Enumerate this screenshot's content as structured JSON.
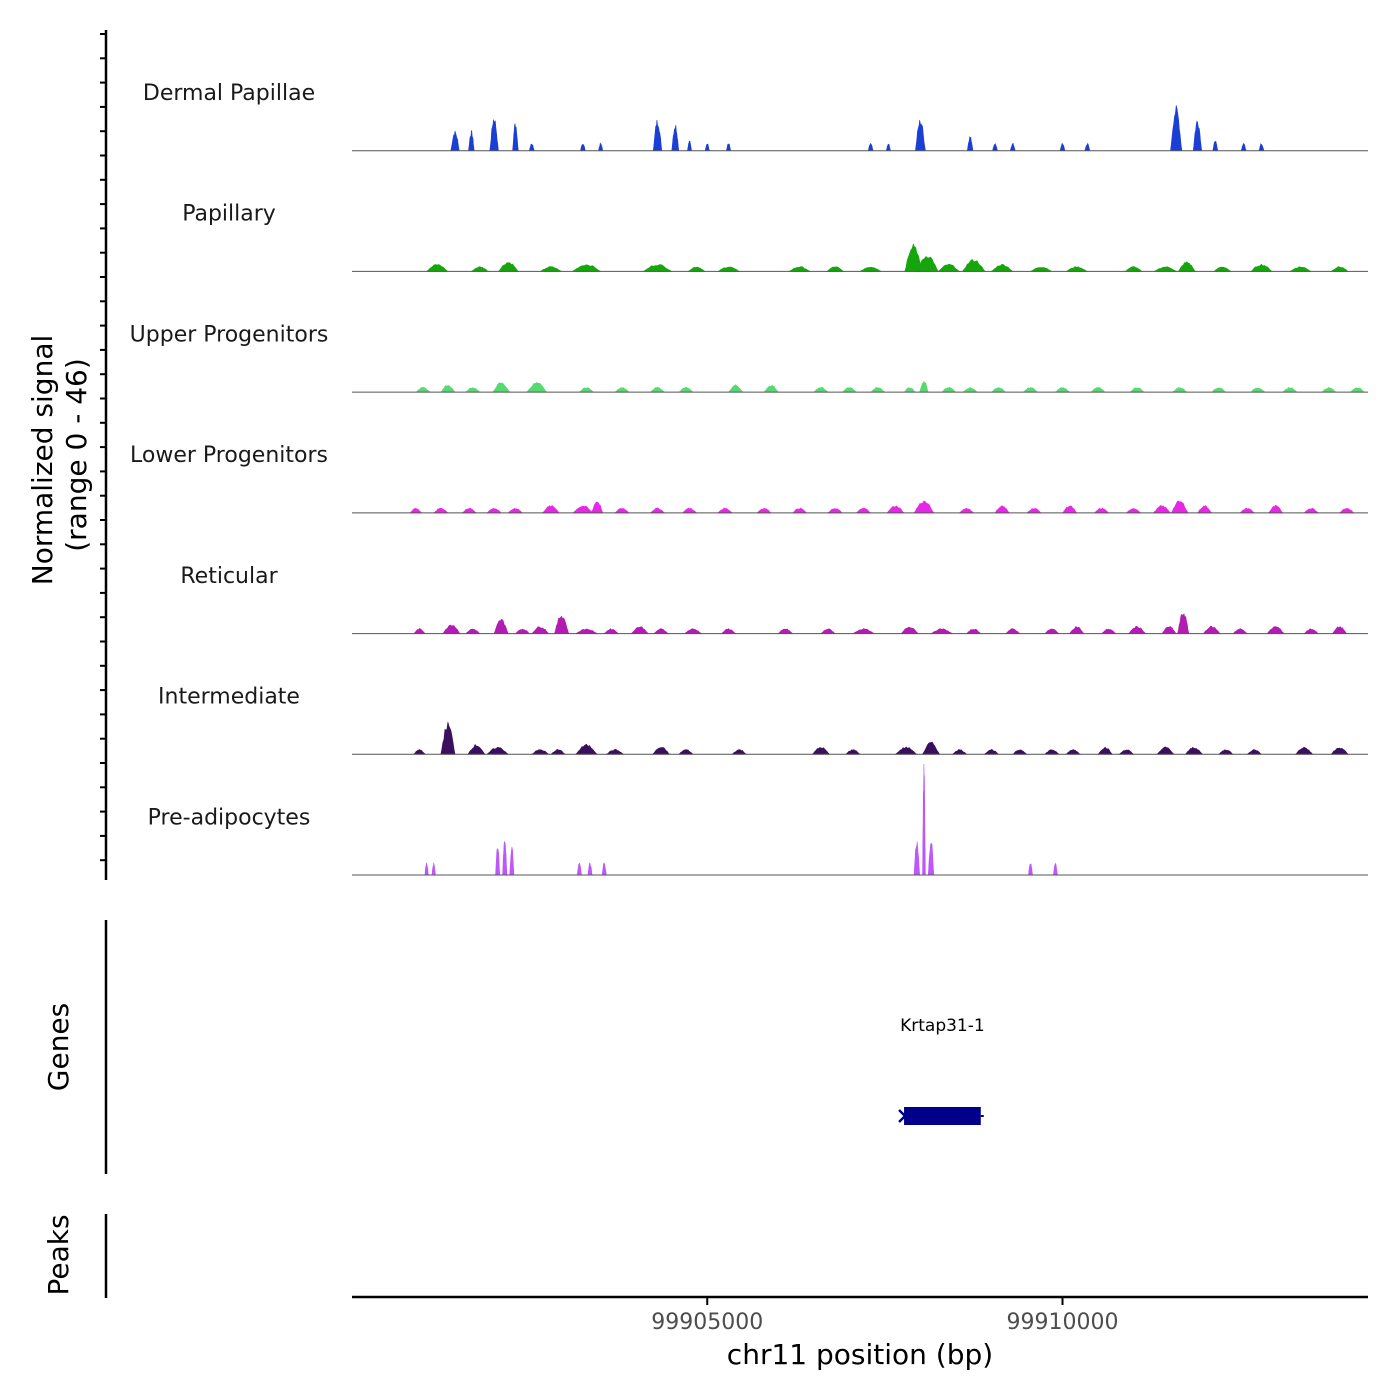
{
  "chart_data": {
    "type": "area",
    "title": "",
    "y_axis_title": "Normalized signal\n(range 0 - 46)",
    "ylim": [
      0,
      46
    ],
    "xlabel": "chr11 position (bp)",
    "xlim": [
      99900000,
      99914300
    ],
    "x_ticks": [
      99905000,
      99910000
    ],
    "x_tick_labels": [
      "99905000",
      "99910000"
    ],
    "genes_panel_label": "Genes",
    "peaks_panel_label": "Peaks",
    "genes": [
      {
        "name": "Krtap31-1",
        "start": 99907770,
        "end": 99908850,
        "strand": "+",
        "color": "#00008B"
      }
    ],
    "peaks": [],
    "tracks": [
      {
        "name": "Dermal Papillae",
        "color": "#1A3FD6",
        "peaks": [
          [
            99901450,
            8,
            60
          ],
          [
            99901680,
            8,
            40
          ],
          [
            99902000,
            14,
            60
          ],
          [
            99902300,
            12,
            40
          ],
          [
            99902530,
            3,
            35
          ],
          [
            99903250,
            3,
            35
          ],
          [
            99903500,
            3,
            30
          ],
          [
            99904300,
            13,
            60
          ],
          [
            99904550,
            11,
            50
          ],
          [
            99904750,
            4,
            30
          ],
          [
            99905000,
            3,
            30
          ],
          [
            99905300,
            3,
            30
          ],
          [
            99907300,
            3,
            35
          ],
          [
            99907550,
            3,
            30
          ],
          [
            99908000,
            13,
            70
          ],
          [
            99908700,
            6,
            40
          ],
          [
            99909050,
            3,
            35
          ],
          [
            99909300,
            3,
            35
          ],
          [
            99910000,
            3,
            35
          ],
          [
            99910350,
            3,
            35
          ],
          [
            99911600,
            18,
            80
          ],
          [
            99911900,
            13,
            60
          ],
          [
            99912150,
            4,
            35
          ],
          [
            99912550,
            3,
            35
          ],
          [
            99912800,
            3,
            35
          ]
        ]
      },
      {
        "name": "Papillary",
        "color": "#14A60A",
        "peaks": [
          [
            99901200,
            3,
            150
          ],
          [
            99901800,
            2,
            120
          ],
          [
            99902200,
            4,
            140
          ],
          [
            99902800,
            2,
            150
          ],
          [
            99903300,
            3,
            200
          ],
          [
            99904300,
            3,
            200
          ],
          [
            99904850,
            2,
            120
          ],
          [
            99905300,
            2,
            150
          ],
          [
            99906300,
            2,
            150
          ],
          [
            99906800,
            2,
            120
          ],
          [
            99907300,
            2,
            150
          ],
          [
            99907900,
            12,
            120
          ],
          [
            99908100,
            7,
            150
          ],
          [
            99908400,
            3,
            150
          ],
          [
            99908750,
            5,
            160
          ],
          [
            99909150,
            3,
            150
          ],
          [
            99909700,
            2,
            150
          ],
          [
            99910200,
            2,
            150
          ],
          [
            99911000,
            2,
            120
          ],
          [
            99911450,
            2,
            160
          ],
          [
            99911750,
            4,
            120
          ],
          [
            99912250,
            2,
            120
          ],
          [
            99912800,
            3,
            150
          ],
          [
            99913350,
            2,
            150
          ],
          [
            99913900,
            2,
            120
          ]
        ]
      },
      {
        "name": "Upper Progenitors",
        "color": "#57D971",
        "peaks": [
          [
            99901000,
            2,
            100
          ],
          [
            99901350,
            3,
            100
          ],
          [
            99901700,
            2,
            100
          ],
          [
            99902100,
            4,
            120
          ],
          [
            99902600,
            4,
            140
          ],
          [
            99903300,
            2,
            100
          ],
          [
            99903800,
            2,
            100
          ],
          [
            99904300,
            2,
            100
          ],
          [
            99904700,
            2,
            100
          ],
          [
            99905400,
            3,
            100
          ],
          [
            99905900,
            3,
            100
          ],
          [
            99906600,
            2,
            100
          ],
          [
            99907000,
            2,
            100
          ],
          [
            99907400,
            2,
            100
          ],
          [
            99907850,
            2,
            80
          ],
          [
            99908050,
            5,
            60
          ],
          [
            99908400,
            2,
            100
          ],
          [
            99908700,
            2,
            100
          ],
          [
            99909100,
            2,
            100
          ],
          [
            99909550,
            2,
            100
          ],
          [
            99910000,
            2,
            100
          ],
          [
            99910500,
            2,
            100
          ],
          [
            99911050,
            2,
            100
          ],
          [
            99911650,
            2,
            100
          ],
          [
            99912200,
            2,
            100
          ],
          [
            99912750,
            2,
            100
          ],
          [
            99913200,
            2,
            100
          ],
          [
            99913750,
            2,
            100
          ],
          [
            99914150,
            2,
            100
          ]
        ]
      },
      {
        "name": "Lower Progenitors",
        "color": "#E628E6",
        "peaks": [
          [
            99900900,
            2,
            80
          ],
          [
            99901250,
            2,
            100
          ],
          [
            99901650,
            2,
            100
          ],
          [
            99902000,
            2,
            100
          ],
          [
            99902300,
            2,
            100
          ],
          [
            99902800,
            3,
            120
          ],
          [
            99903250,
            3,
            140
          ],
          [
            99903450,
            5,
            80
          ],
          [
            99903800,
            2,
            100
          ],
          [
            99904300,
            2,
            100
          ],
          [
            99904750,
            2,
            100
          ],
          [
            99905250,
            2,
            100
          ],
          [
            99905800,
            2,
            100
          ],
          [
            99906300,
            2,
            100
          ],
          [
            99906800,
            2,
            100
          ],
          [
            99907200,
            2,
            100
          ],
          [
            99907650,
            3,
            120
          ],
          [
            99908050,
            5,
            140
          ],
          [
            99908650,
            2,
            100
          ],
          [
            99909150,
            3,
            100
          ],
          [
            99909600,
            2,
            100
          ],
          [
            99910100,
            3,
            100
          ],
          [
            99910550,
            2,
            100
          ],
          [
            99911000,
            2,
            100
          ],
          [
            99911400,
            3,
            120
          ],
          [
            99911650,
            5,
            120
          ],
          [
            99912000,
            3,
            100
          ],
          [
            99912600,
            2,
            100
          ],
          [
            99913000,
            3,
            100
          ],
          [
            99913500,
            2,
            100
          ],
          [
            99914000,
            2,
            100
          ]
        ]
      },
      {
        "name": "Reticular",
        "color": "#B01DB0",
        "peaks": [
          [
            99900950,
            2,
            80
          ],
          [
            99901400,
            4,
            120
          ],
          [
            99901700,
            2,
            100
          ],
          [
            99902100,
            6,
            100
          ],
          [
            99902400,
            2,
            100
          ],
          [
            99902650,
            3,
            120
          ],
          [
            99902950,
            8,
            100
          ],
          [
            99903300,
            2,
            150
          ],
          [
            99903650,
            2,
            100
          ],
          [
            99904050,
            3,
            120
          ],
          [
            99904350,
            2,
            100
          ],
          [
            99904800,
            2,
            120
          ],
          [
            99905300,
            2,
            100
          ],
          [
            99906100,
            2,
            100
          ],
          [
            99906700,
            2,
            100
          ],
          [
            99907200,
            2,
            150
          ],
          [
            99907850,
            3,
            120
          ],
          [
            99908300,
            2,
            150
          ],
          [
            99908750,
            2,
            100
          ],
          [
            99909300,
            2,
            100
          ],
          [
            99909850,
            2,
            100
          ],
          [
            99910200,
            3,
            100
          ],
          [
            99910650,
            2,
            100
          ],
          [
            99911050,
            3,
            120
          ],
          [
            99911500,
            3,
            100
          ],
          [
            99911700,
            9,
            80
          ],
          [
            99912100,
            3,
            120
          ],
          [
            99912500,
            2,
            100
          ],
          [
            99913000,
            3,
            120
          ],
          [
            99913500,
            2,
            100
          ],
          [
            99913900,
            3,
            100
          ]
        ]
      },
      {
        "name": "Intermediate",
        "color": "#3B0F5E",
        "peaks": [
          [
            99900950,
            2,
            80
          ],
          [
            99901350,
            13,
            100
          ],
          [
            99901750,
            4,
            120
          ],
          [
            99902050,
            3,
            150
          ],
          [
            99902650,
            2,
            120
          ],
          [
            99902900,
            2,
            100
          ],
          [
            99903300,
            4,
            150
          ],
          [
            99903700,
            2,
            120
          ],
          [
            99904350,
            3,
            120
          ],
          [
            99904700,
            2,
            100
          ],
          [
            99905450,
            2,
            100
          ],
          [
            99906600,
            3,
            120
          ],
          [
            99907050,
            2,
            100
          ],
          [
            99907800,
            3,
            150
          ],
          [
            99908150,
            5,
            120
          ],
          [
            99908550,
            2,
            100
          ],
          [
            99909000,
            2,
            100
          ],
          [
            99909400,
            2,
            100
          ],
          [
            99909850,
            2,
            100
          ],
          [
            99910150,
            2,
            100
          ],
          [
            99910600,
            3,
            100
          ],
          [
            99910900,
            2,
            100
          ],
          [
            99911450,
            3,
            120
          ],
          [
            99911850,
            3,
            120
          ],
          [
            99912300,
            2,
            100
          ],
          [
            99912700,
            2,
            100
          ],
          [
            99913400,
            3,
            120
          ],
          [
            99913900,
            3,
            120
          ]
        ]
      },
      {
        "name": "Pre-adipocytes",
        "color": "#BD57FA",
        "peaks": [
          [
            99901050,
            5,
            25
          ],
          [
            99901150,
            5,
            25
          ],
          [
            99902050,
            12,
            30
          ],
          [
            99902150,
            15,
            30
          ],
          [
            99902250,
            12,
            30
          ],
          [
            99903200,
            5,
            30
          ],
          [
            99903350,
            5,
            30
          ],
          [
            99903550,
            5,
            30
          ],
          [
            99907950,
            14,
            40
          ],
          [
            99908050,
            46,
            20
          ],
          [
            99908150,
            14,
            40
          ],
          [
            99909550,
            5,
            30
          ],
          [
            99909900,
            5,
            30
          ]
        ]
      }
    ]
  }
}
